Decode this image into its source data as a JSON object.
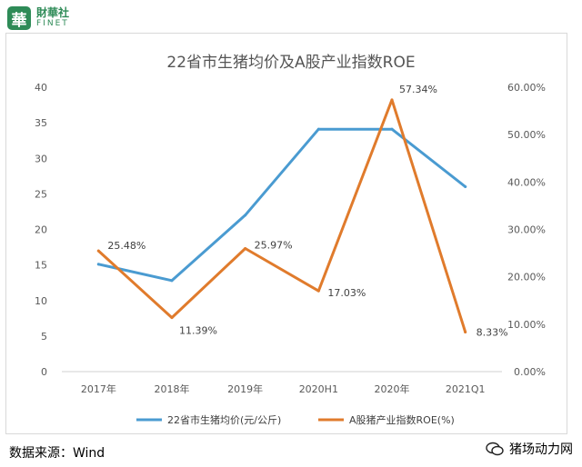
{
  "brand": {
    "mark": "華",
    "cn": "財華社",
    "en": "FINET"
  },
  "footer": {
    "source": "数据来源：Wind",
    "account": "猪场动力网"
  },
  "chart_data": {
    "type": "line",
    "title": "22省市生猪均价及A股产业指数ROE",
    "categories": [
      "2017年",
      "2018年",
      "2019年",
      "2020H1",
      "2020年",
      "2021Q1"
    ],
    "series": [
      {
        "name": "22省市生猪均价(元/公斤)",
        "axis": "left",
        "color": "#4a9bd1",
        "values": [
          15.1,
          12.8,
          22.0,
          34.1,
          34.1,
          26.0
        ]
      },
      {
        "name": "A股猪产业指数ROE(%)",
        "axis": "right",
        "color": "#e07b2c",
        "values": [
          25.48,
          11.39,
          25.97,
          17.03,
          57.34,
          8.33
        ],
        "labels": [
          "25.48%",
          "11.39%",
          "25.97%",
          "17.03%",
          "57.34%",
          "8.33%"
        ]
      }
    ],
    "yleft": {
      "min": 0,
      "max": 40,
      "ticks": [
        "0",
        "5",
        "10",
        "15",
        "20",
        "25",
        "30",
        "35",
        "40"
      ]
    },
    "yright": {
      "min": 0,
      "max": 60,
      "ticks": [
        "0.00%",
        "10.00%",
        "20.00%",
        "30.00%",
        "40.00%",
        "50.00%",
        "60.00%"
      ]
    },
    "grid": false,
    "legend": "bottom"
  }
}
